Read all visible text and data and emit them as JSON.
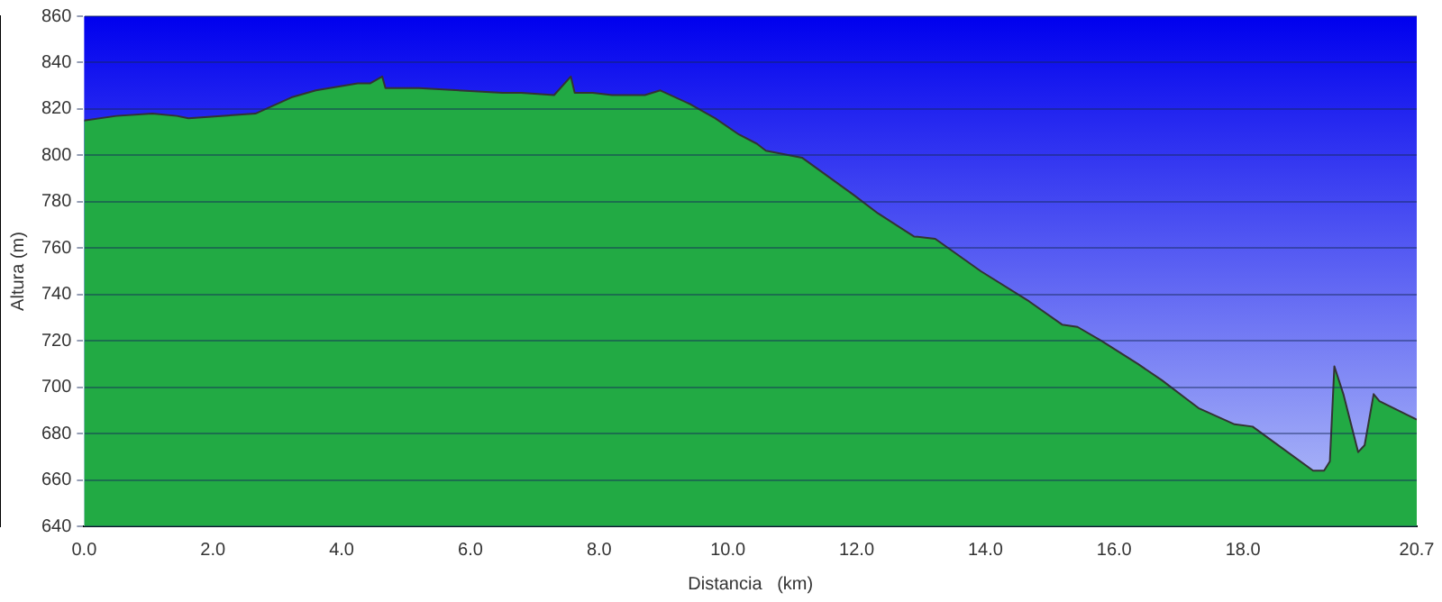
{
  "chart_data": {
    "type": "area",
    "xlabel": "Distancia   (km)",
    "ylabel": "Altura (m)",
    "grid": "y",
    "xlim": [
      0,
      20.7
    ],
    "ylim": [
      640,
      860
    ],
    "xticks": [
      {
        "value": 0,
        "label": "0.0"
      },
      {
        "value": 2,
        "label": "2.0"
      },
      {
        "value": 4,
        "label": "4.0"
      },
      {
        "value": 6,
        "label": "6.0"
      },
      {
        "value": 8,
        "label": "8.0"
      },
      {
        "value": 10,
        "label": "10.0"
      },
      {
        "value": 12,
        "label": "12.0"
      },
      {
        "value": 14,
        "label": "14.0"
      },
      {
        "value": 16,
        "label": "16.0"
      },
      {
        "value": 18,
        "label": "18.0"
      },
      {
        "value": 20.7,
        "label": "20.7"
      }
    ],
    "yticks": [
      640,
      660,
      680,
      700,
      720,
      740,
      760,
      780,
      800,
      820,
      840,
      860
    ],
    "series": [
      {
        "color": "#22aa44",
        "x": [
          0,
          0.5,
          1.06,
          1.44,
          1.62,
          2.66,
          3.22,
          3.6,
          4.25,
          4.44,
          4.63,
          4.68,
          5.2,
          6.5,
          6.79,
          7.3,
          7.56,
          7.62,
          7.9,
          8.2,
          8.71,
          8.95,
          9.42,
          9.8,
          10.17,
          10.45,
          10.59,
          11.15,
          11.95,
          12.33,
          12.89,
          13.22,
          13.93,
          14.68,
          15.19,
          15.43,
          15.8,
          16.37,
          16.74,
          17.12,
          17.31,
          17.87,
          18.15,
          19.09,
          19.26,
          19.35,
          19.42,
          19.56,
          19.79,
          19.89,
          20.03,
          20.12,
          20.7
        ],
        "values": [
          815,
          817,
          818,
          817,
          816,
          818,
          825,
          828,
          831,
          831,
          834,
          829,
          829,
          827,
          827,
          826,
          834,
          827,
          827,
          826,
          826,
          828,
          822,
          816,
          809,
          805,
          802,
          799,
          783,
          775,
          765,
          764,
          750,
          737,
          727,
          726,
          720,
          710,
          703,
          695,
          691,
          684,
          683,
          664,
          664,
          668,
          709,
          697,
          672,
          675,
          697,
          694,
          686
        ]
      }
    ]
  }
}
